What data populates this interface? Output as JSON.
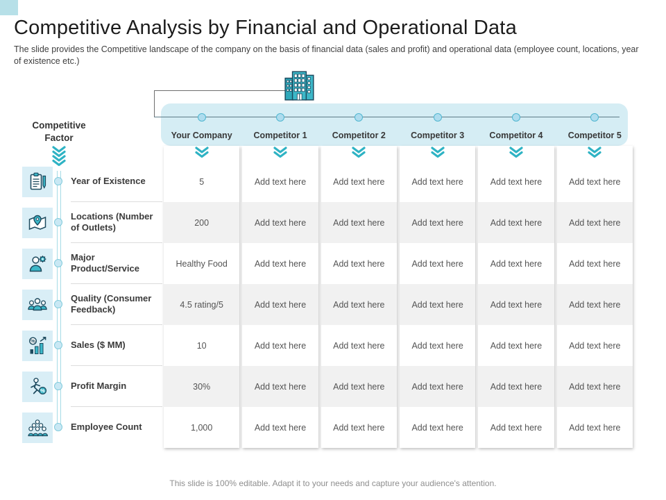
{
  "slide": {
    "title": "Competitive Analysis by Financial and Operational Data",
    "subtitle": "The slide provides the Competitive landscape of the company on the basis of financial data (sales and profit) and operational data (employee count, locations, year of existence etc.)",
    "footer": "This slide is 100% editable. Adapt it to your needs and capture your audience's attention."
  },
  "diagram": {
    "building_icon": "company-building-icon",
    "factor_header": "Competitive Factor",
    "columns": [
      "Your Company",
      "Competitor 1",
      "Competitor 2",
      "Competitor 3",
      "Competitor 4",
      "Competitor 5"
    ]
  },
  "table": {
    "placeholder": "Add text here",
    "rows": [
      {
        "icon": "clipboard-checklist-icon",
        "label": "Year of Existence",
        "values": [
          "5",
          "Add text here",
          "Add text here",
          "Add text here",
          "Add text here",
          "Add text here"
        ]
      },
      {
        "icon": "map-location-icon",
        "label": "Locations (Number of Outlets)",
        "values": [
          "200",
          "Add text here",
          "Add text here",
          "Add text here",
          "Add text here",
          "Add text here"
        ]
      },
      {
        "icon": "person-gear-icon",
        "label": "Major Product/Service",
        "values": [
          "Healthy Food",
          "Add text here",
          "Add text here",
          "Add text here",
          "Add text here",
          "Add text here"
        ]
      },
      {
        "icon": "people-feedback-icon",
        "label": "Quality (Consumer Feedback)",
        "values": [
          "4.5 rating/5",
          "Add text here",
          "Add text here",
          "Add text here",
          "Add text here",
          "Add text here"
        ]
      },
      {
        "icon": "sales-chart-icon",
        "label": "Sales ($ MM)",
        "values": [
          "10",
          "Add text here",
          "Add text here",
          "Add text here",
          "Add text here",
          "Add text here"
        ]
      },
      {
        "icon": "profit-margin-icon",
        "label": "Profit Margin",
        "values": [
          "30%",
          "Add text here",
          "Add text here",
          "Add text here",
          "Add text here",
          "Add text here"
        ]
      },
      {
        "icon": "employee-count-icon",
        "label": "Employee Count",
        "values": [
          "1,000",
          "Add text here",
          "Add text here",
          "Add text here",
          "Add text here",
          "Add text here"
        ]
      }
    ]
  },
  "colors": {
    "accent_teal": "#2fb3c4",
    "navy": "#1d4a5e",
    "header_band": "#d5edf4",
    "row_alt": "#f1f1f1",
    "corner_square": "#b7e0e8"
  }
}
